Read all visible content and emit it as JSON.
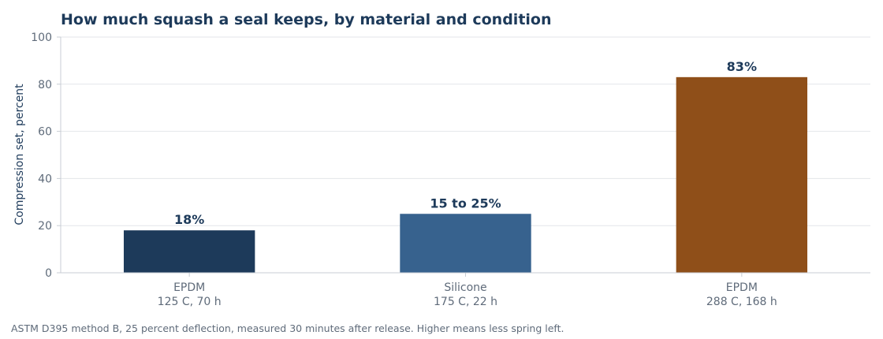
{
  "chart_data": {
    "type": "bar",
    "title": "How much squash a seal keeps, by material and condition",
    "ylabel": "Compression set, percent",
    "xlabel": "",
    "ylim": [
      0,
      100
    ],
    "yticks": [
      0,
      20,
      40,
      60,
      80,
      100
    ],
    "grid": true,
    "categories": [
      {
        "line1": "EPDM",
        "line2": "125 C, 70 h"
      },
      {
        "line1": "Silicone",
        "line2": "175 C, 22 h"
      },
      {
        "line1": "EPDM",
        "line2": "288 C, 168 h"
      }
    ],
    "values": [
      18,
      25,
      83
    ],
    "range_low": [
      null,
      15,
      null
    ],
    "data_labels": [
      "18%",
      "15 to 25%",
      "83%"
    ],
    "bar_colors": [
      "#1d3a5a",
      "#37628e",
      "#8f4f19"
    ],
    "footnote": "ASTM D395 method B, 25 percent deflection, measured 30 minutes after release. Higher means less spring left."
  },
  "colors": {
    "title": "#1d3a5a",
    "axis_text": "#5f6b7a",
    "data_label": "#1d3a5a",
    "grid": "#e3e6ea",
    "axis_line": "#c8cdd4"
  }
}
